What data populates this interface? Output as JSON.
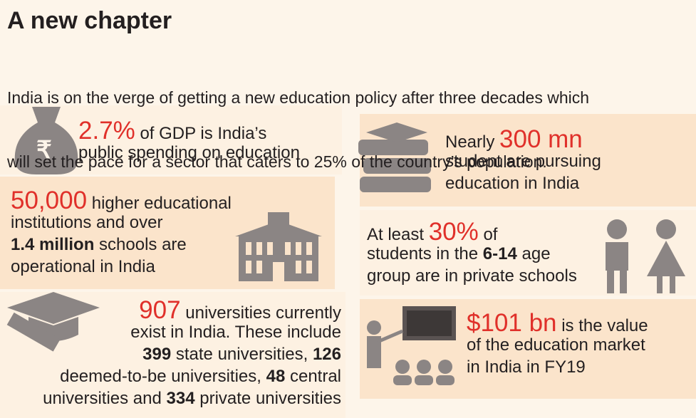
{
  "header": {
    "title": "A new chapter",
    "subtitle_lines": [
      "India is on the verge of getting a new education policy after three decades which",
      "will set the pace for a sector that caters to 25% of the country’s population."
    ]
  },
  "facts": [
    {
      "lines": [
        [
          {
            "text": "2.7%",
            "emphasis": "red"
          },
          " of GDP is India’s"
        ],
        [
          "public spending on education"
        ]
      ]
    },
    {
      "lines": [
        [
          {
            "text": "50,000",
            "emphasis": "red"
          },
          " higher educational"
        ],
        [
          "institutions and over"
        ],
        [
          {
            "text": "1.4 million",
            "emphasis": "bold"
          },
          " schools are"
        ],
        [
          "operational in India"
        ]
      ]
    },
    {
      "lines": [
        [
          {
            "text": "907",
            "emphasis": "red"
          },
          " universities currently"
        ],
        [
          "exist in India. These include"
        ],
        [
          {
            "text": "399",
            "emphasis": "bold"
          },
          " state universities, ",
          {
            "text": "126",
            "emphasis": "bold"
          }
        ],
        [
          "deemed-to-be universities, ",
          {
            "text": "48",
            "emphasis": "bold"
          },
          " central"
        ],
        [
          "universities and ",
          {
            "text": "334",
            "emphasis": "bold"
          },
          " private universities"
        ]
      ]
    },
    {
      "lines": [
        [
          "Nearly ",
          {
            "text": "300 mn",
            "emphasis": "red"
          }
        ],
        [
          "student are pursuing"
        ],
        [
          "education in India"
        ]
      ]
    },
    {
      "lines": [
        [
          "At least ",
          {
            "text": "30%",
            "emphasis": "red"
          },
          " of"
        ],
        [
          "students in the ",
          {
            "text": "6-14",
            "emphasis": "bold"
          },
          " age"
        ],
        [
          "group are in private schools"
        ]
      ]
    },
    {
      "lines": [
        [
          {
            "text": "$101 bn",
            "emphasis": "red"
          },
          " is the value"
        ],
        [
          "of the education market"
        ],
        [
          "in India in FY19"
        ]
      ]
    }
  ]
}
